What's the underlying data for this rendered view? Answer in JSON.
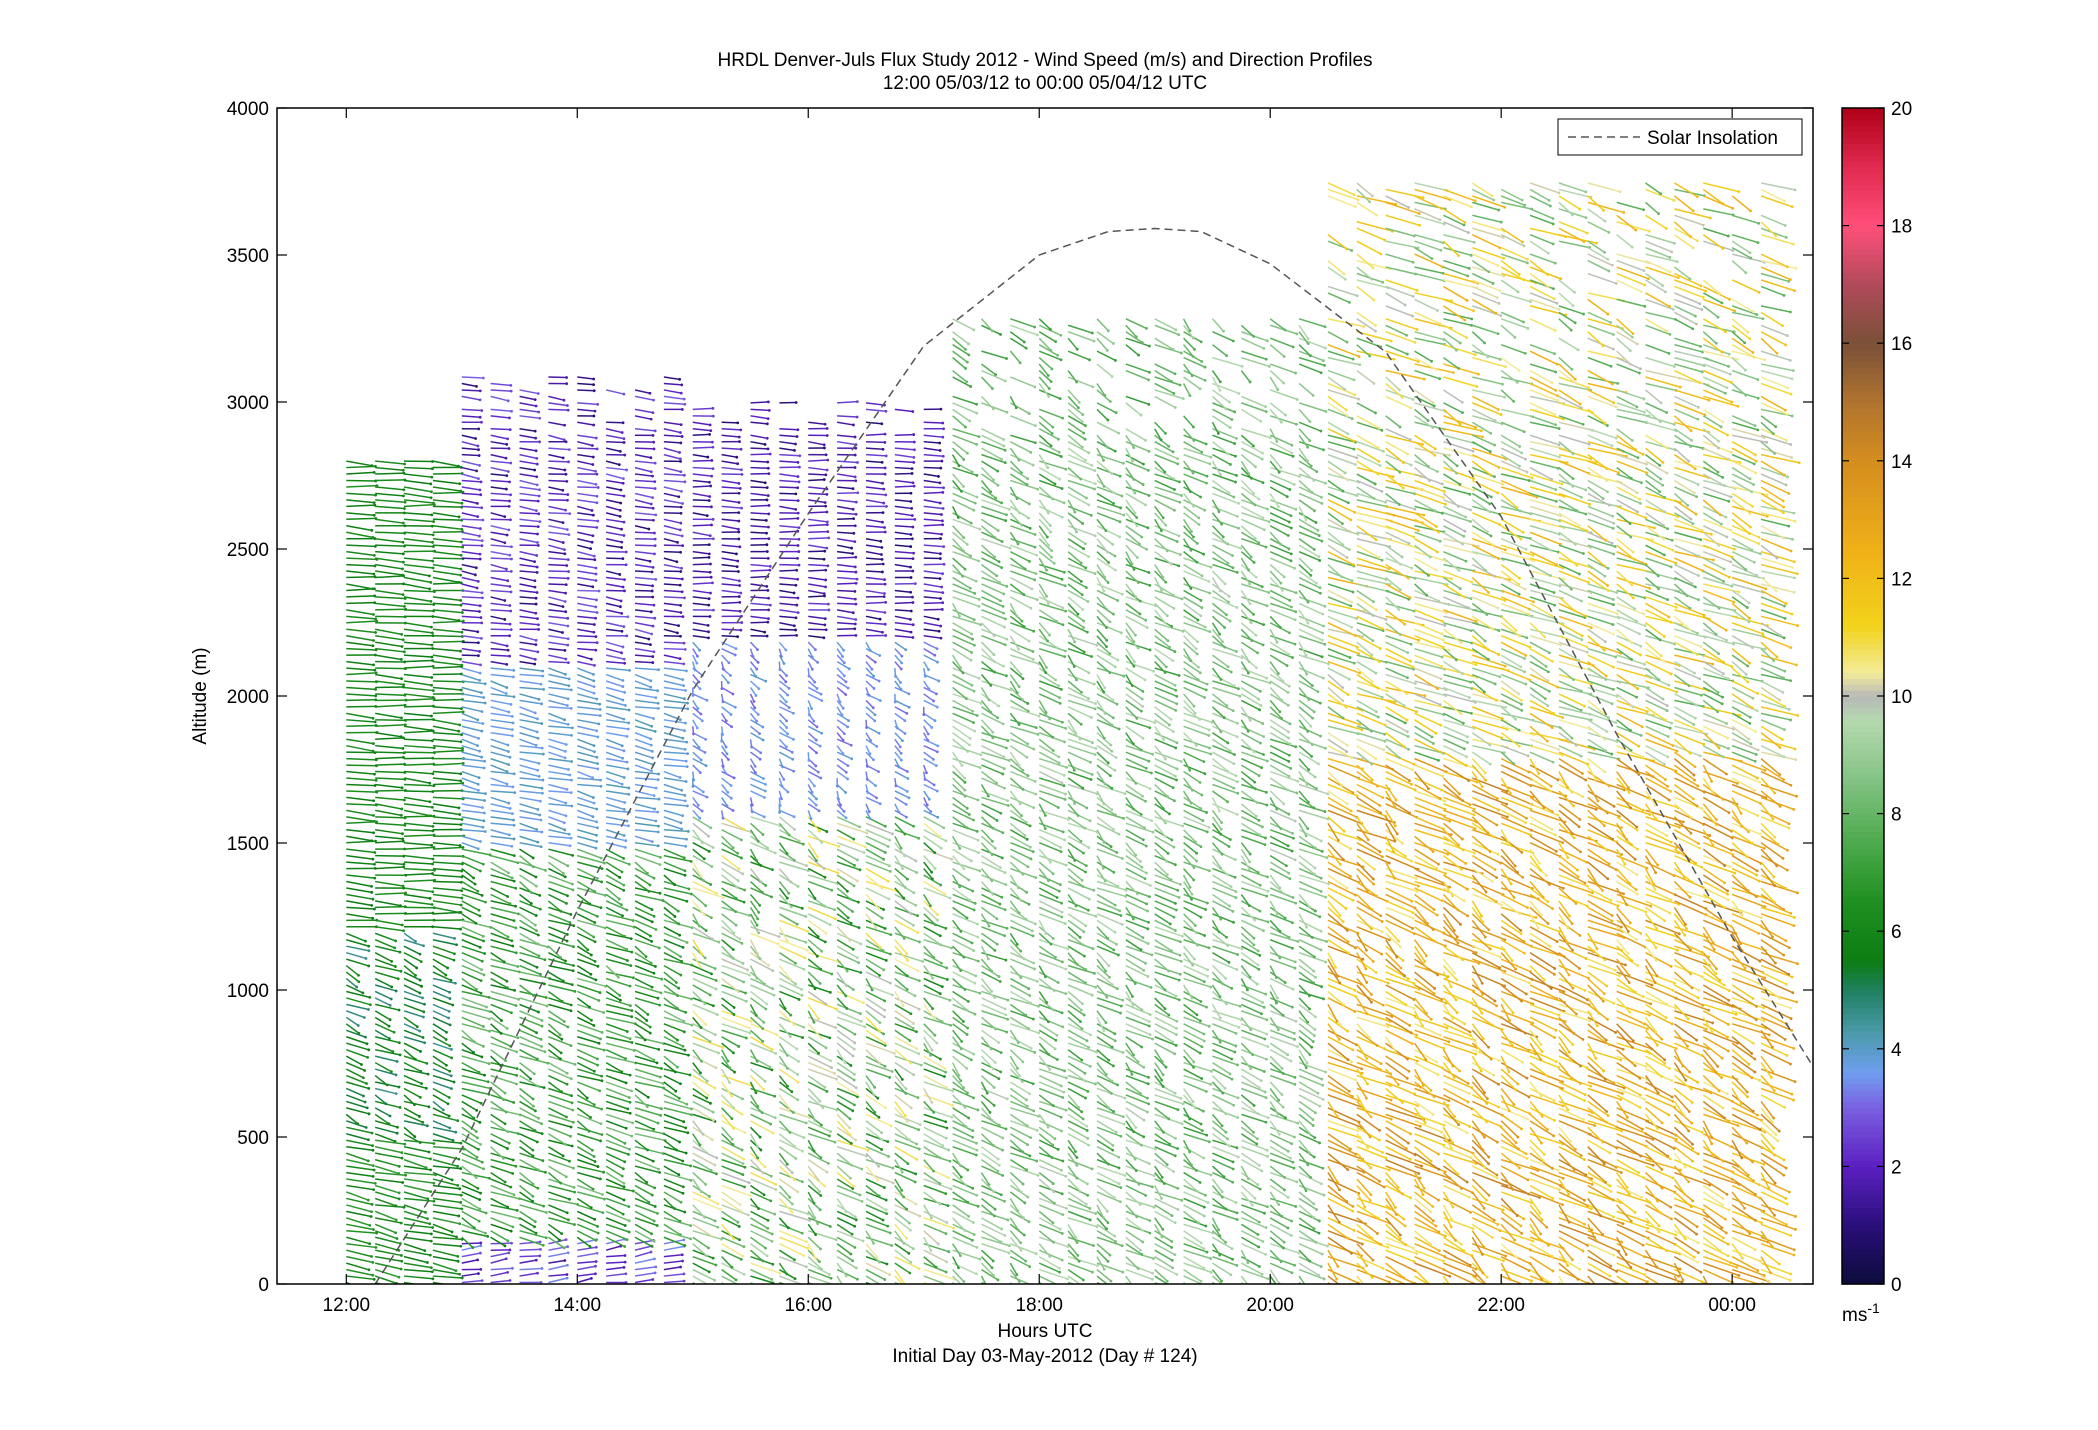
{
  "chart_data": {
    "type": "wind-barb-profile",
    "title": "HRDL Denver-Juls Flux Study 2012 - Wind Speed (m/s) and Direction Profiles",
    "subtitle": "12:00 05/03/12 to 00:00 05/04/12  UTC",
    "xlabel": "Hours UTC",
    "xlabel2": "Initial Day 03-May-2012 (Day # 124)",
    "ylabel": "Altitude (m)",
    "xlim": [
      11.4,
      24.7
    ],
    "ylim": [
      0,
      4000
    ],
    "x_ticks": [
      12,
      14,
      16,
      18,
      20,
      22,
      24
    ],
    "x_tick_labels": [
      "12:00",
      "14:00",
      "16:00",
      "18:00",
      "20:00",
      "22:00",
      "00:00"
    ],
    "y_ticks": [
      0,
      500,
      1000,
      1500,
      2000,
      2500,
      3000,
      3500,
      4000
    ],
    "y_tick_labels": [
      "0",
      "500",
      "1000",
      "1500",
      "2000",
      "2500",
      "3000",
      "3500",
      "4000"
    ],
    "legend": {
      "entries": [
        "Solar Insolation"
      ],
      "placement": "top-right",
      "style": "dashed"
    },
    "colorbar": {
      "range": [
        0,
        20
      ],
      "ticks": [
        0,
        2,
        4,
        6,
        8,
        10,
        12,
        14,
        16,
        18,
        20
      ],
      "tick_labels": [
        "0",
        "2",
        "4",
        "6",
        "8",
        "10",
        "12",
        "14",
        "16",
        "18",
        "20"
      ],
      "unit": "ms",
      "unit_exp": "-1",
      "stops": [
        {
          "v": 0,
          "c": "#0b0b3a"
        },
        {
          "v": 1,
          "c": "#2a0f7a"
        },
        {
          "v": 2,
          "c": "#5a1fc0"
        },
        {
          "v": 3,
          "c": "#7a60e0"
        },
        {
          "v": 3.6,
          "c": "#6f9ef0"
        },
        {
          "v": 4.3,
          "c": "#4a9aa8"
        },
        {
          "v": 5,
          "c": "#1f8060"
        },
        {
          "v": 5.5,
          "c": "#0b7d12"
        },
        {
          "v": 6.5,
          "c": "#1f8f20"
        },
        {
          "v": 7.5,
          "c": "#4caa4c"
        },
        {
          "v": 8.5,
          "c": "#7fc07f"
        },
        {
          "v": 9.6,
          "c": "#b5d9b0"
        },
        {
          "v": 10,
          "c": "#b8b8b8"
        },
        {
          "v": 10.4,
          "c": "#f3ec9a"
        },
        {
          "v": 11.2,
          "c": "#f2d31a"
        },
        {
          "v": 12.5,
          "c": "#f0b018"
        },
        {
          "v": 14,
          "c": "#d48d1e"
        },
        {
          "v": 15,
          "c": "#b0742e"
        },
        {
          "v": 16,
          "c": "#7a5038"
        },
        {
          "v": 17,
          "c": "#b04a5a"
        },
        {
          "v": 18,
          "c": "#ff4f7a"
        },
        {
          "v": 19,
          "c": "#e02a50"
        },
        {
          "v": 20,
          "c": "#b00018"
        }
      ]
    },
    "profile_times_h": [
      12.0,
      12.25,
      12.5,
      12.75,
      13.0,
      13.25,
      13.5,
      13.75,
      14.0,
      14.25,
      14.5,
      14.75,
      15.0,
      15.25,
      15.5,
      15.75,
      16.0,
      16.25,
      16.5,
      16.75,
      17.0,
      17.25,
      17.5,
      17.75,
      18.0,
      18.25,
      18.5,
      18.75,
      19.0,
      19.25,
      19.5,
      19.75,
      20.0,
      20.25,
      20.5,
      20.75,
      21.0,
      21.25,
      21.5,
      21.75,
      22.0,
      22.25,
      22.5,
      22.75,
      23.0,
      23.25,
      23.5,
      23.75,
      24.0,
      24.25
    ],
    "regimes": [
      {
        "t0": 11.9,
        "t1": 13.0,
        "z0": 0,
        "z1": 500,
        "speed": [
          5.5,
          7.0
        ],
        "dir": 300
      },
      {
        "t0": 11.9,
        "t1": 13.0,
        "z0": 500,
        "z1": 1200,
        "speed": [
          4.5,
          6.5
        ],
        "dir": 320
      },
      {
        "t0": 11.9,
        "t1": 13.0,
        "z0": 1200,
        "z1": 2800,
        "speed": [
          5.5,
          6.5
        ],
        "dir": 280
      },
      {
        "t0": 13.0,
        "t1": 14.9,
        "z0": 0,
        "z1": 150,
        "speed": [
          1.5,
          3.5
        ],
        "dir": 250
      },
      {
        "t0": 13.0,
        "t1": 14.9,
        "z0": 150,
        "z1": 1500,
        "speed": [
          5.5,
          8.5
        ],
        "dir": 320
      },
      {
        "t0": 13.0,
        "t1": 14.9,
        "z0": 1500,
        "z1": 2100,
        "speed": [
          3.5,
          4.2
        ],
        "dir": 300
      },
      {
        "t0": 13.0,
        "t1": 14.9,
        "z0": 2100,
        "z1": 3100,
        "speed": [
          1.0,
          3.0
        ],
        "dir": 290
      },
      {
        "t0": 14.9,
        "t1": 17.1,
        "z0": 0,
        "z1": 1600,
        "speed": [
          6.0,
          11.0
        ],
        "dir": 330
      },
      {
        "t0": 14.9,
        "t1": 17.1,
        "z0": 1600,
        "z1": 2200,
        "speed": [
          3.0,
          4.0
        ],
        "dir": 340
      },
      {
        "t0": 14.9,
        "t1": 17.1,
        "z0": 2200,
        "z1": 3000,
        "speed": [
          0.8,
          2.6
        ],
        "dir": 280
      },
      {
        "t0": 17.1,
        "t1": 20.3,
        "z0": 0,
        "z1": 3300,
        "speed": [
          7.0,
          9.8
        ],
        "dir": 330
      },
      {
        "t0": 20.3,
        "t1": 24.4,
        "z0": 0,
        "z1": 1800,
        "speed": [
          10.5,
          14.5
        ],
        "dir": 330
      },
      {
        "t0": 20.3,
        "t1": 24.4,
        "z0": 1800,
        "z1": 3750,
        "speed": [
          7.5,
          12.5
        ],
        "dir": 320
      }
    ],
    "series": [
      {
        "name": "Solar Insolation",
        "x": [
          12.25,
          13.0,
          14.0,
          15.0,
          16.0,
          17.0,
          18.0,
          18.6,
          19.0,
          19.4,
          20.0,
          21.0,
          22.0,
          23.0,
          24.0,
          24.7
        ],
        "y": [
          0,
          460,
          1270,
          2020,
          2620,
          3190,
          3500,
          3580,
          3590,
          3580,
          3470,
          3170,
          2610,
          1870,
          1180,
          740
        ]
      }
    ]
  }
}
